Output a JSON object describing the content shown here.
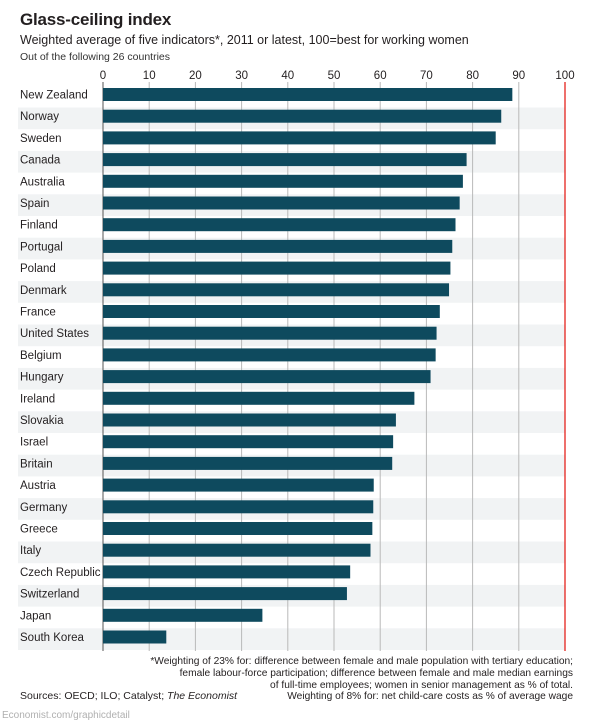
{
  "title": "Glass-ceiling index",
  "subtitle": "Weighted average of five indicators*, 2011 or latest, 100=best for working women",
  "subtitle2": "Out of the following 26 countries",
  "footnote": [
    "*Weighting of 23% for: difference between female and male population with tertiary education;",
    "female labour-force participation; difference between female and male median earnings",
    "of full-time employees; women in senior management as % of total.",
    "Weighting of 8% for: net child-care costs as % of average wage"
  ],
  "sources_prefix": "Sources: OECD; ILO; Catalyst; ",
  "sources_italic": "The Economist",
  "site": "Economist.com/graphicdetail",
  "colors": {
    "bar": "#0e4a5e",
    "grid": "#b9b9b9",
    "reference_line": "#e3120b"
  },
  "chart_data": {
    "type": "bar",
    "orientation": "horizontal",
    "categories": [
      "New Zealand",
      "Norway",
      "Sweden",
      "Canada",
      "Australia",
      "Spain",
      "Finland",
      "Portugal",
      "Poland",
      "Denmark",
      "France",
      "United States",
      "Belgium",
      "Hungary",
      "Ireland",
      "Slovakia",
      "Israel",
      "Britain",
      "Austria",
      "Germany",
      "Greece",
      "Italy",
      "Czech Republic",
      "Switzerland",
      "Japan",
      "South Korea"
    ],
    "values": [
      88.6,
      86.2,
      85.0,
      78.7,
      77.9,
      77.2,
      76.3,
      75.6,
      75.2,
      74.9,
      72.9,
      72.2,
      72.0,
      70.9,
      67.4,
      63.4,
      62.8,
      62.6,
      58.6,
      58.5,
      58.3,
      57.9,
      53.5,
      52.8,
      34.5,
      13.7
    ],
    "ticks": [
      "0",
      "10",
      "20",
      "30",
      "40",
      "50",
      "60",
      "70",
      "80",
      "90",
      "100"
    ],
    "xlim": [
      0,
      100
    ],
    "reference_value": 100,
    "grid": true
  }
}
